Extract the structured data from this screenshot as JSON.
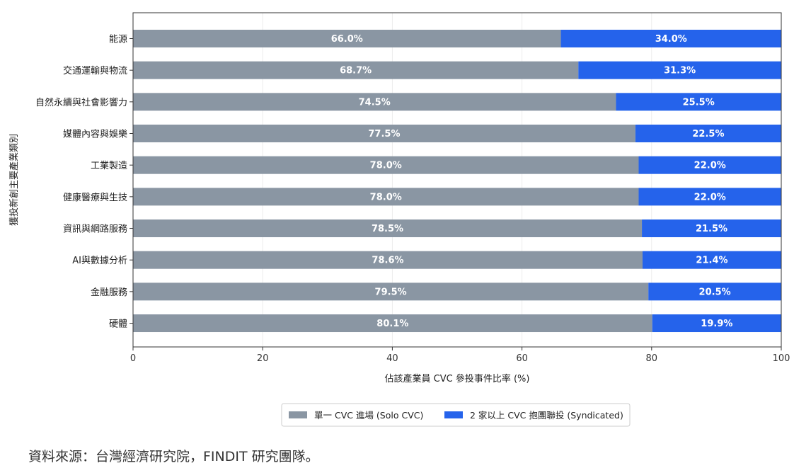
{
  "chart_data": {
    "type": "bar",
    "orientation": "horizontal",
    "stacked": true,
    "title": "",
    "xlabel": "佔該產業員 CVC 參投事件比率 (%)",
    "ylabel": "獲投新創主要產業類別",
    "xlim": [
      0,
      100
    ],
    "x_ticks": [
      "0",
      "20",
      "40",
      "60",
      "80",
      "100"
    ],
    "categories": [
      "能源",
      "交通運輸與物流",
      "自然永續與社會影響力",
      "媒體內容與娛樂",
      "工業製造",
      "健康醫療與生技",
      "資訊與網路服務",
      "AI與數據分析",
      "金融服務",
      "硬體"
    ],
    "series": [
      {
        "name": "單一 CVC 進場 (Solo CVC)",
        "color": "#8a96a3",
        "values": [
          66.0,
          68.7,
          74.5,
          77.5,
          78.0,
          78.0,
          78.5,
          78.6,
          79.5,
          80.1
        ],
        "labels": [
          "66.0%",
          "68.7%",
          "74.5%",
          "77.5%",
          "78.0%",
          "78.0%",
          "78.5%",
          "78.6%",
          "79.5%",
          "80.1%"
        ]
      },
      {
        "name": "2 家以上 CVC 抱團聯投 (Syndicated)",
        "color": "#2563eb",
        "values": [
          34.0,
          31.3,
          25.5,
          22.5,
          22.0,
          22.0,
          21.5,
          21.4,
          20.5,
          19.9
        ],
        "labels": [
          "34.0%",
          "31.3%",
          "25.5%",
          "22.5%",
          "22.0%",
          "22.0%",
          "21.5%",
          "21.4%",
          "20.5%",
          "19.9%"
        ]
      }
    ],
    "grid": "vertical",
    "legend_position": "bottom-center"
  },
  "source_note": "資料來源：台灣經濟研究院，FINDIT 研究團隊。"
}
